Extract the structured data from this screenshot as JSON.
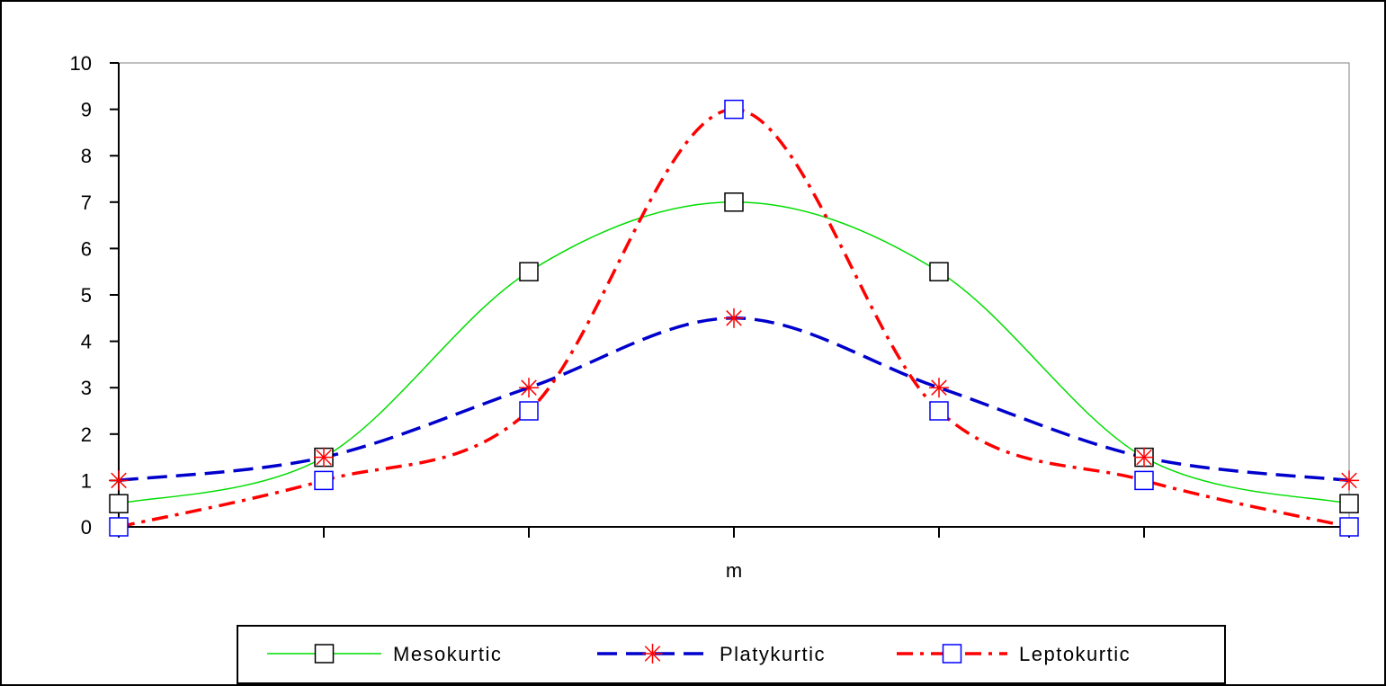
{
  "chart_data": {
    "type": "line",
    "xlabel": "m",
    "ylabel": "",
    "ylim": [
      0,
      10
    ],
    "yticks": [
      0,
      1,
      2,
      3,
      4,
      5,
      6,
      7,
      8,
      9,
      10
    ],
    "x": [
      0,
      1,
      2,
      3,
      4,
      5,
      6
    ],
    "grid": false,
    "legend_position": "bottom",
    "series": [
      {
        "name": "Mesokurtic",
        "color": "#00dd00",
        "line_style": "solid",
        "marker": "square",
        "marker_color": "#000000",
        "values": [
          0.5,
          1.5,
          5.5,
          7.0,
          5.5,
          1.5,
          0.5
        ]
      },
      {
        "name": "Platykurtic",
        "color": "#0000cc",
        "line_style": "dashed",
        "marker": "asterisk",
        "marker_color": "#ff0000",
        "values": [
          1.0,
          1.5,
          3.0,
          4.5,
          3.0,
          1.5,
          1.0
        ]
      },
      {
        "name": "Leptokurtic",
        "color": "#ff0000",
        "line_style": "dash-dot",
        "marker": "square",
        "marker_color": "#0000ff",
        "values": [
          0.0,
          1.0,
          2.5,
          9.0,
          2.5,
          1.0,
          0.0
        ]
      }
    ]
  }
}
